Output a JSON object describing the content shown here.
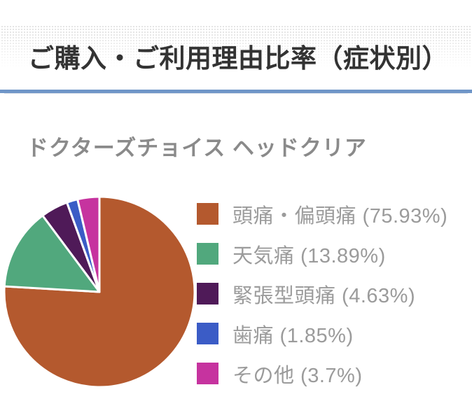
{
  "page": {
    "background_color": "#ffffff"
  },
  "header": {
    "title": "ご購入・ご利用理由比率（症状別）",
    "underline_color": "#6f96c8",
    "title_color": "#333333"
  },
  "section": {
    "product_title": "ドクターズチョイス ヘッドクリア",
    "product_title_color": "#8a8a8a"
  },
  "chart_data": {
    "type": "pie",
    "title": "ドクターズチョイス ヘッドクリア",
    "categories": [
      "頭痛・偏頭痛",
      "天気痛",
      "緊張型頭痛",
      "歯痛",
      "その他"
    ],
    "values": [
      75.93,
      13.89,
      4.63,
      1.85,
      3.7
    ],
    "unit": "%",
    "colors": [
      "#b4592e",
      "#51a87d",
      "#4f1a58",
      "#3b5cc6",
      "#c6339f"
    ],
    "legend_labels": [
      "頭痛・偏頭痛 (75.93%)",
      "天気痛 (13.89%)",
      "緊張型頭痛 (4.63%)",
      "歯痛 (1.85%)",
      "その他 (3.7%)"
    ],
    "legend_position": "right",
    "legend_text_color": "#9b9b9b",
    "start_angle_deg": 0,
    "direction": "clockwise",
    "slice_border_color": "#ffffff"
  }
}
